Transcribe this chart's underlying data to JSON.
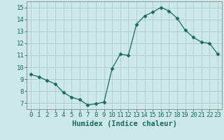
{
  "x": [
    0,
    1,
    2,
    3,
    4,
    5,
    6,
    7,
    8,
    9,
    10,
    11,
    12,
    13,
    14,
    15,
    16,
    17,
    18,
    19,
    20,
    21,
    22,
    23
  ],
  "y": [
    9.4,
    9.2,
    8.9,
    8.6,
    7.9,
    7.5,
    7.3,
    6.85,
    6.95,
    7.1,
    9.9,
    11.1,
    11.0,
    13.6,
    14.3,
    14.6,
    15.0,
    14.7,
    14.1,
    13.1,
    12.5,
    12.1,
    12.0,
    11.1
  ],
  "line_color": "#1a6b5a",
  "marker": "D",
  "marker_size": 2.5,
  "bg_color": "#cce8e8",
  "grid_color": "#b0d0d0",
  "xlabel": "Humidex (Indice chaleur)",
  "xlim": [
    -0.5,
    23.5
  ],
  "ylim": [
    6.5,
    15.5
  ],
  "yticks": [
    7,
    8,
    9,
    10,
    11,
    12,
    13,
    14,
    15
  ],
  "xticks": [
    0,
    1,
    2,
    3,
    4,
    5,
    6,
    7,
    8,
    9,
    10,
    11,
    12,
    13,
    14,
    15,
    16,
    17,
    18,
    19,
    20,
    21,
    22,
    23
  ],
  "xlabel_fontsize": 7.5,
  "tick_fontsize": 6.5,
  "tick_color": "#1a6b5a",
  "axis_color": "#888888"
}
